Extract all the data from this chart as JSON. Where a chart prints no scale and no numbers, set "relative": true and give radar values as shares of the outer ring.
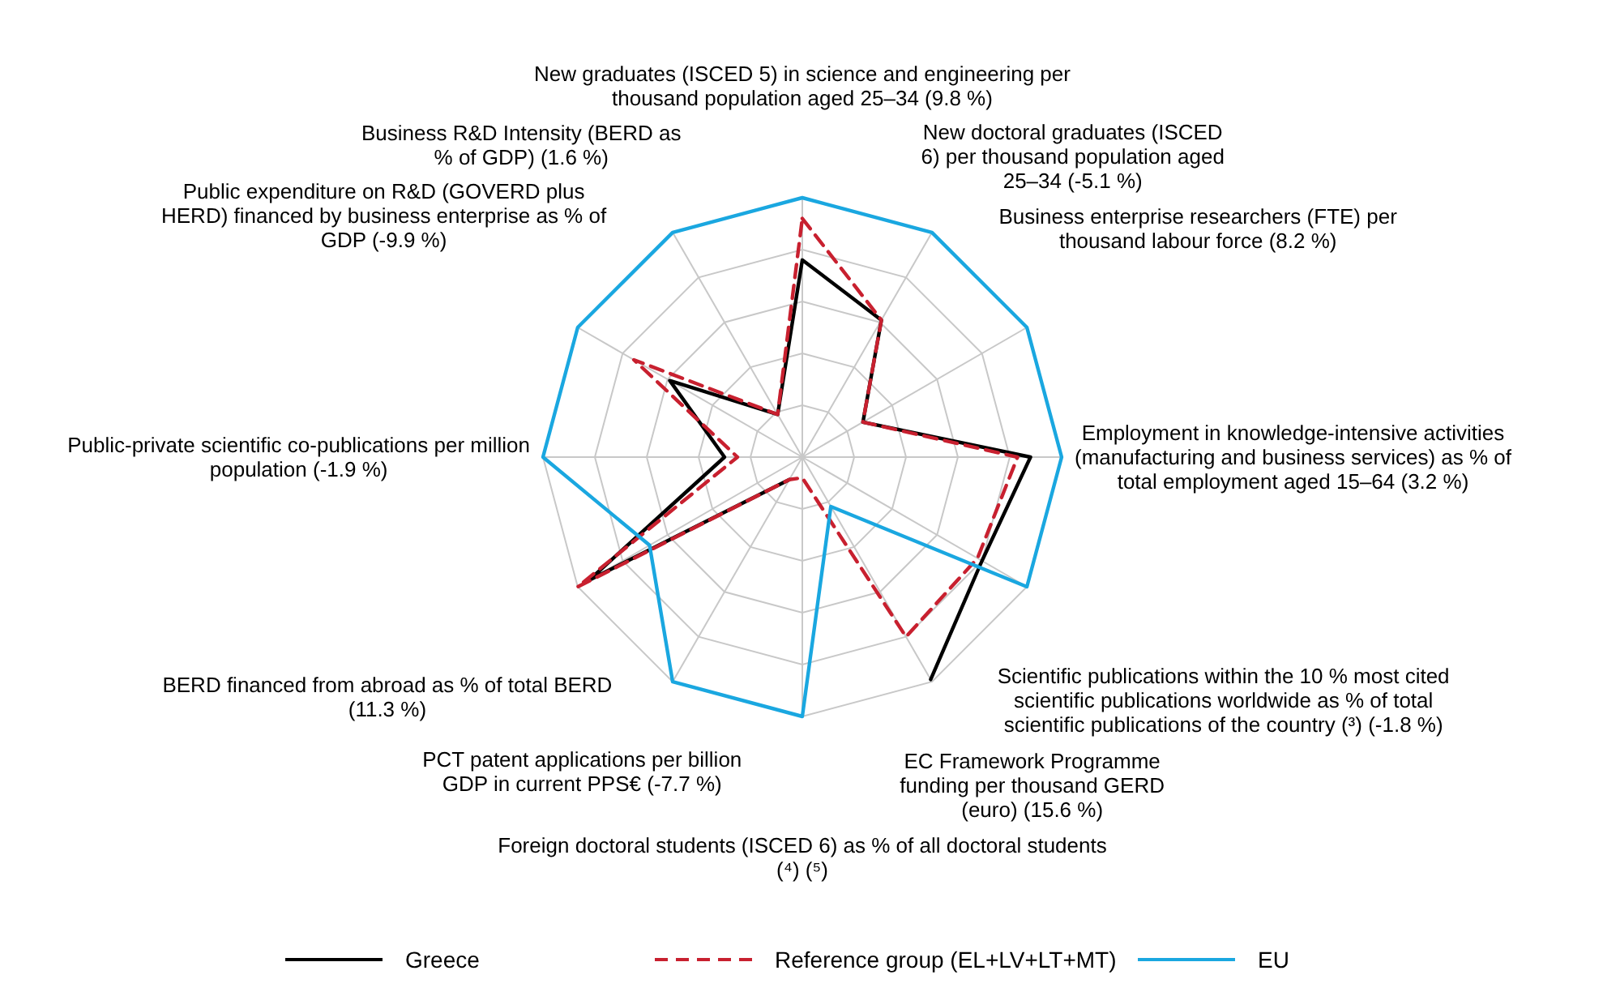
{
  "chart_data": {
    "type": "radar",
    "relative": true,
    "grid": true,
    "legend": "bottom",
    "categories": [
      "New graduates (ISCED 5) in science and engineering per thousand population aged 25–34 (9.8 %)",
      "New doctoral graduates (ISCED 6) per thousand population aged 25–34 (-5.1 %)",
      "Business enterprise researchers (FTE) per thousand labour force (8.2 %)",
      "Employment in knowledge-intensive activities (manufacturing and business services) as % of total employment aged 15–64 (3.2 %)",
      "Scientific publications within the 10 % most cited scientific publications worldwide as % of total scientific publications of the country (³) (-1.8 %)",
      "EC Framework Programme funding per thousand GERD (euro) (15.6 %)",
      "Foreign doctoral students (ISCED 6) as % of all doctoral students (⁴) (⁵)",
      "PCT patent applications per billion GDP in current PPS€ (-7.7 %)",
      "BERD financed from abroad as % of total BERD (11.3 %)",
      "Public-private scientific co-publications per million population (-1.9 %)",
      "Public expenditure on R&D (GOVERD plus HERD) financed by business enterprise as % of GDP (-9.9 %)",
      "Business R&D Intensity (BERD as % of GDP) (1.6 %)"
    ],
    "series": [
      {
        "name": "Greece",
        "color": "#000000",
        "line_style": "solid",
        "values": [
          0.76,
          0.61,
          0.27,
          0.88,
          0.8,
          0.99,
          null,
          0.1,
          0.95,
          0.3,
          0.59,
          0.19
        ]
      },
      {
        "name": "Reference group (EL+LV+LT+MT)",
        "color": "#c8202f",
        "line_style": "dashed",
        "values": [
          0.92,
          0.61,
          0.27,
          0.83,
          0.78,
          0.8,
          0.08,
          0.1,
          1.0,
          0.25,
          0.75,
          0.19
        ]
      },
      {
        "name": "EU",
        "color": "#1aa7e0",
        "line_style": "solid",
        "values": [
          1,
          1,
          1,
          1,
          1,
          0.22,
          1,
          1,
          0.68,
          1,
          1,
          1
        ]
      }
    ]
  }
}
